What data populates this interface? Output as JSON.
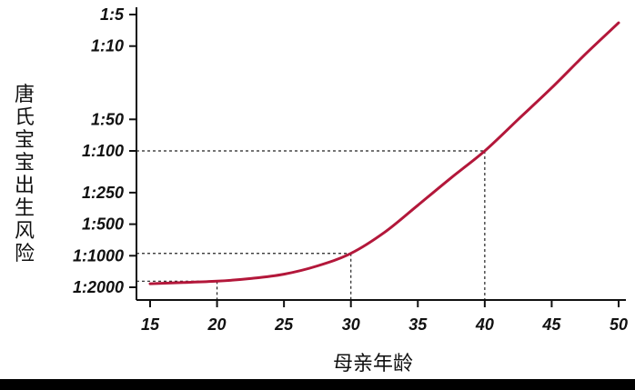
{
  "chart_data": {
    "type": "line",
    "xlabel": "母亲年龄",
    "ylabel": "唐氏宝宝出生风险",
    "y_scale": "log (reciprocal risk)",
    "xlim": [
      15,
      50
    ],
    "xticks": [
      15,
      20,
      25,
      30,
      35,
      40,
      45,
      50
    ],
    "yticks": [
      {
        "label": "1:5",
        "denominator": 5
      },
      {
        "label": "1:10",
        "denominator": 10
      },
      {
        "label": "1:50",
        "denominator": 50
      },
      {
        "label": "1:100",
        "denominator": 100
      },
      {
        "label": "1:250",
        "denominator": 250
      },
      {
        "label": "1:500",
        "denominator": 500
      },
      {
        "label": "1:1000",
        "denominator": 1000
      },
      {
        "label": "1:2000",
        "denominator": 2000
      }
    ],
    "series": [
      {
        "color": "#b3173a",
        "x": [
          15,
          17.5,
          20,
          22.5,
          25,
          27.5,
          30,
          32.5,
          35,
          37.5,
          40,
          42.5,
          45,
          47.5,
          50
        ],
        "y_denominator": [
          1850,
          1800,
          1750,
          1650,
          1500,
          1250,
          950,
          600,
          330,
          180,
          100,
          50,
          25,
          12,
          6
        ]
      }
    ],
    "highlights": [
      {
        "x": 20,
        "y_denominator": 1750
      },
      {
        "x": 30,
        "y_denominator": 950
      },
      {
        "x": 40,
        "y_denominator": 100
      }
    ],
    "grid": false,
    "legend": "none"
  }
}
